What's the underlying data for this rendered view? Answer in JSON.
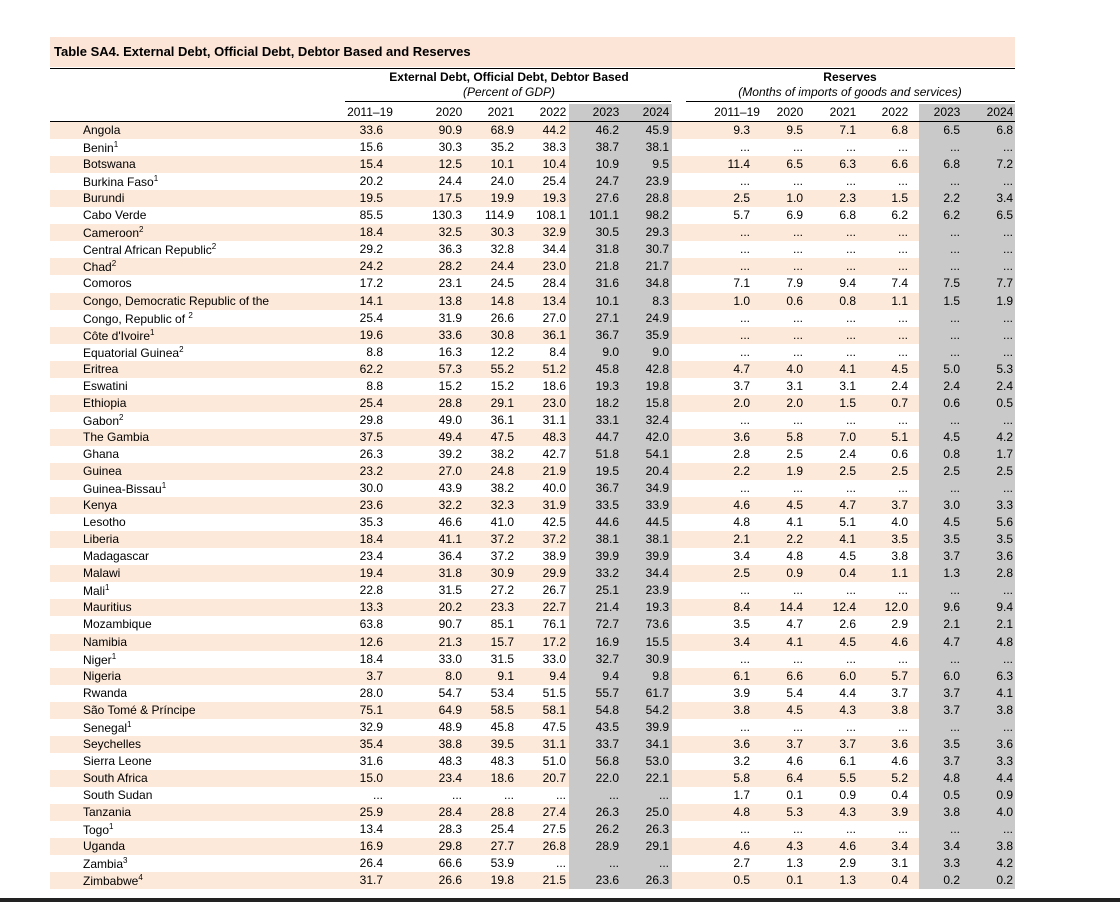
{
  "title": "Table SA4. External Debt, Official Debt, Debtor Based and Reserves",
  "groups": [
    {
      "title": "External Debt, Official Debt, Debtor Based",
      "subtitle": "(Percent of GDP)",
      "years": [
        "2011–19",
        "2020",
        "2021",
        "2022",
        "2023",
        "2024"
      ]
    },
    {
      "title": "Reserves",
      "subtitle": "(Months of imports of goods and services)",
      "years": [
        "2011–19",
        "2020",
        "2021",
        "2022",
        "2023",
        "2024"
      ]
    }
  ],
  "rows": [
    {
      "name": "Angola",
      "debt": [
        "33.6",
        "90.9",
        "68.9",
        "44.2",
        "46.2",
        "45.9"
      ],
      "reserves": [
        "9.3",
        "9.5",
        "7.1",
        "6.8",
        "6.5",
        "6.8"
      ]
    },
    {
      "name": "Benin",
      "note": "1",
      "debt": [
        "15.6",
        "30.3",
        "35.2",
        "38.3",
        "38.7",
        "38.1"
      ],
      "reserves": [
        "...",
        "...",
        "...",
        "...",
        "...",
        "..."
      ]
    },
    {
      "name": "Botswana",
      "debt": [
        "15.4",
        "12.5",
        "10.1",
        "10.4",
        "10.9",
        "9.5"
      ],
      "reserves": [
        "11.4",
        "6.5",
        "6.3",
        "6.6",
        "6.8",
        "7.2"
      ]
    },
    {
      "name": "Burkina Faso",
      "note": "1",
      "debt": [
        "20.2",
        "24.4",
        "24.0",
        "25.4",
        "24.7",
        "23.9"
      ],
      "reserves": [
        "...",
        "...",
        "...",
        "...",
        "...",
        "..."
      ]
    },
    {
      "name": "Burundi",
      "debt": [
        "19.5",
        "17.5",
        "19.9",
        "19.3",
        "27.6",
        "28.8"
      ],
      "reserves": [
        "2.5",
        "1.0",
        "2.3",
        "1.5",
        "2.2",
        "3.4"
      ]
    },
    {
      "name": "Cabo Verde",
      "debt": [
        "85.5",
        "130.3",
        "114.9",
        "108.1",
        "101.1",
        "98.2"
      ],
      "reserves": [
        "5.7",
        "6.9",
        "6.8",
        "6.2",
        "6.2",
        "6.5"
      ]
    },
    {
      "name": "Cameroon",
      "note": "2",
      "debt": [
        "18.4",
        "32.5",
        "30.3",
        "32.9",
        "30.5",
        "29.3"
      ],
      "reserves": [
        "...",
        "...",
        "...",
        "...",
        "...",
        "..."
      ]
    },
    {
      "name": "Central African Republic",
      "note": "2",
      "debt": [
        "29.2",
        "36.3",
        "32.8",
        "34.4",
        "31.8",
        "30.7"
      ],
      "reserves": [
        "...",
        "...",
        "...",
        "...",
        "...",
        "..."
      ]
    },
    {
      "name": "Chad",
      "note": "2",
      "debt": [
        "24.2",
        "28.2",
        "24.4",
        "23.0",
        "21.8",
        "21.7"
      ],
      "reserves": [
        "...",
        "...",
        "...",
        "...",
        "...",
        "..."
      ]
    },
    {
      "name": "Comoros",
      "debt": [
        "17.2",
        "23.1",
        "24.5",
        "28.4",
        "31.6",
        "34.8"
      ],
      "reserves": [
        "7.1",
        "7.9",
        "9.4",
        "7.4",
        "7.5",
        "7.7"
      ]
    },
    {
      "name": "Congo, Democratic Republic of the",
      "debt": [
        "14.1",
        "13.8",
        "14.8",
        "13.4",
        "10.1",
        "8.3"
      ],
      "reserves": [
        "1.0",
        "0.6",
        "0.8",
        "1.1",
        "1.5",
        "1.9"
      ]
    },
    {
      "name": "Congo, Republic of ",
      "note": "2",
      "debt": [
        "25.4",
        "31.9",
        "26.6",
        "27.0",
        "27.1",
        "24.9"
      ],
      "reserves": [
        "...",
        "...",
        "...",
        "...",
        "...",
        "..."
      ]
    },
    {
      "name": "Côte d'Ivoire",
      "note": "1",
      "debt": [
        "19.6",
        "33.6",
        "30.8",
        "36.1",
        "36.7",
        "35.9"
      ],
      "reserves": [
        "...",
        "...",
        "...",
        "...",
        "...",
        "..."
      ]
    },
    {
      "name": "Equatorial Guinea",
      "note": "2",
      "debt": [
        "8.8",
        "16.3",
        "12.2",
        "8.4",
        "9.0",
        "9.0"
      ],
      "reserves": [
        "...",
        "...",
        "...",
        "...",
        "...",
        "..."
      ]
    },
    {
      "name": "Eritrea",
      "debt": [
        "62.2",
        "57.3",
        "55.2",
        "51.2",
        "45.8",
        "42.8"
      ],
      "reserves": [
        "4.7",
        "4.0",
        "4.1",
        "4.5",
        "5.0",
        "5.3"
      ]
    },
    {
      "name": "Eswatini",
      "debt": [
        "8.8",
        "15.2",
        "15.2",
        "18.6",
        "19.3",
        "19.8"
      ],
      "reserves": [
        "3.7",
        "3.1",
        "3.1",
        "2.4",
        "2.4",
        "2.4"
      ]
    },
    {
      "name": "Ethiopia",
      "debt": [
        "25.4",
        "28.8",
        "29.1",
        "23.0",
        "18.2",
        "15.8"
      ],
      "reserves": [
        "2.0",
        "2.0",
        "1.5",
        "0.7",
        "0.6",
        "0.5"
      ]
    },
    {
      "name": "Gabon",
      "note": "2",
      "debt": [
        "29.8",
        "49.0",
        "36.1",
        "31.1",
        "33.1",
        "32.4"
      ],
      "reserves": [
        "...",
        "...",
        "...",
        "...",
        "...",
        "..."
      ]
    },
    {
      "name": "The Gambia",
      "debt": [
        "37.5",
        "49.4",
        "47.5",
        "48.3",
        "44.7",
        "42.0"
      ],
      "reserves": [
        "3.6",
        "5.8",
        "7.0",
        "5.1",
        "4.5",
        "4.2"
      ]
    },
    {
      "name": "Ghana",
      "debt": [
        "26.3",
        "39.2",
        "38.2",
        "42.7",
        "51.8",
        "54.1"
      ],
      "reserves": [
        "2.8",
        "2.5",
        "2.4",
        "0.6",
        "0.8",
        "1.7"
      ]
    },
    {
      "name": "Guinea",
      "debt": [
        "23.2",
        "27.0",
        "24.8",
        "21.9",
        "19.5",
        "20.4"
      ],
      "reserves": [
        "2.2",
        "1.9",
        "2.5",
        "2.5",
        "2.5",
        "2.5"
      ]
    },
    {
      "name": "Guinea-Bissau",
      "note": "1",
      "debt": [
        "30.0",
        "43.9",
        "38.2",
        "40.0",
        "36.7",
        "34.9"
      ],
      "reserves": [
        "...",
        "...",
        "...",
        "...",
        "...",
        "..."
      ]
    },
    {
      "name": "Kenya",
      "debt": [
        "23.6",
        "32.2",
        "32.3",
        "31.9",
        "33.5",
        "33.9"
      ],
      "reserves": [
        "4.6",
        "4.5",
        "4.7",
        "3.7",
        "3.0",
        "3.3"
      ]
    },
    {
      "name": "Lesotho",
      "debt": [
        "35.3",
        "46.6",
        "41.0",
        "42.5",
        "44.6",
        "44.5"
      ],
      "reserves": [
        "4.8",
        "4.1",
        "5.1",
        "4.0",
        "4.5",
        "5.6"
      ]
    },
    {
      "name": "Liberia",
      "debt": [
        "18.4",
        "41.1",
        "37.2",
        "37.2",
        "38.1",
        "38.1"
      ],
      "reserves": [
        "2.1",
        "2.2",
        "4.1",
        "3.5",
        "3.5",
        "3.5"
      ]
    },
    {
      "name": "Madagascar",
      "debt": [
        "23.4",
        "36.4",
        "37.2",
        "38.9",
        "39.9",
        "39.9"
      ],
      "reserves": [
        "3.4",
        "4.8",
        "4.5",
        "3.8",
        "3.7",
        "3.6"
      ]
    },
    {
      "name": "Malawi",
      "debt": [
        "19.4",
        "31.8",
        "30.9",
        "29.9",
        "33.2",
        "34.4"
      ],
      "reserves": [
        "2.5",
        "0.9",
        "0.4",
        "1.1",
        "1.3",
        "2.8"
      ]
    },
    {
      "name": "Mali",
      "note": "1",
      "debt": [
        "22.8",
        "31.5",
        "27.2",
        "26.7",
        "25.1",
        "23.9"
      ],
      "reserves": [
        "...",
        "...",
        "...",
        "...",
        "...",
        "..."
      ]
    },
    {
      "name": "Mauritius",
      "debt": [
        "13.3",
        "20.2",
        "23.3",
        "22.7",
        "21.4",
        "19.3"
      ],
      "reserves": [
        "8.4",
        "14.4",
        "12.4",
        "12.0",
        "9.6",
        "9.4"
      ]
    },
    {
      "name": "Mozambique",
      "debt": [
        "63.8",
        "90.7",
        "85.1",
        "76.1",
        "72.7",
        "73.6"
      ],
      "reserves": [
        "3.5",
        "4.7",
        "2.6",
        "2.9",
        "2.1",
        "2.1"
      ]
    },
    {
      "name": "Namibia",
      "debt": [
        "12.6",
        "21.3",
        "15.7",
        "17.2",
        "16.9",
        "15.5"
      ],
      "reserves": [
        "3.4",
        "4.1",
        "4.5",
        "4.6",
        "4.7",
        "4.8"
      ]
    },
    {
      "name": "Niger",
      "note": "1",
      "debt": [
        "18.4",
        "33.0",
        "31.5",
        "33.0",
        "32.7",
        "30.9"
      ],
      "reserves": [
        "...",
        "...",
        "...",
        "...",
        "...",
        "..."
      ]
    },
    {
      "name": "Nigeria",
      "debt": [
        "3.7",
        "8.0",
        "9.1",
        "9.4",
        "9.4",
        "9.8"
      ],
      "reserves": [
        "6.1",
        "6.6",
        "6.0",
        "5.7",
        "6.0",
        "6.3"
      ]
    },
    {
      "name": "Rwanda",
      "debt": [
        "28.0",
        "54.7",
        "53.4",
        "51.5",
        "55.7",
        "61.7"
      ],
      "reserves": [
        "3.9",
        "5.4",
        "4.4",
        "3.7",
        "3.7",
        "4.1"
      ]
    },
    {
      "name": "São Tomé & Príncipe",
      "debt": [
        "75.1",
        "64.9",
        "58.5",
        "58.1",
        "54.8",
        "54.2"
      ],
      "reserves": [
        "3.8",
        "4.5",
        "4.3",
        "3.8",
        "3.7",
        "3.8"
      ]
    },
    {
      "name": "Senegal",
      "note": "1",
      "debt": [
        "32.9",
        "48.9",
        "45.8",
        "47.5",
        "43.5",
        "39.9"
      ],
      "reserves": [
        "...",
        "...",
        "...",
        "...",
        "...",
        "..."
      ]
    },
    {
      "name": "Seychelles",
      "debt": [
        "35.4",
        "38.8",
        "39.5",
        "31.1",
        "33.7",
        "34.1"
      ],
      "reserves": [
        "3.6",
        "3.7",
        "3.7",
        "3.6",
        "3.5",
        "3.6"
      ]
    },
    {
      "name": "Sierra Leone",
      "debt": [
        "31.6",
        "48.3",
        "48.3",
        "51.0",
        "56.8",
        "53.0"
      ],
      "reserves": [
        "3.2",
        "4.6",
        "6.1",
        "4.6",
        "3.7",
        "3.3"
      ]
    },
    {
      "name": "South Africa",
      "debt": [
        "15.0",
        "23.4",
        "18.6",
        "20.7",
        "22.0",
        "22.1"
      ],
      "reserves": [
        "5.8",
        "6.4",
        "5.5",
        "5.2",
        "4.8",
        "4.4"
      ]
    },
    {
      "name": "South Sudan",
      "debt": [
        "...",
        "...",
        "...",
        "...",
        "...",
        "..."
      ],
      "reserves": [
        "1.7",
        "0.1",
        "0.9",
        "0.4",
        "0.5",
        "0.9"
      ]
    },
    {
      "name": "Tanzania",
      "debt": [
        "25.9",
        "28.4",
        "28.8",
        "27.4",
        "26.3",
        "25.0"
      ],
      "reserves": [
        "4.8",
        "5.3",
        "4.3",
        "3.9",
        "3.8",
        "4.0"
      ]
    },
    {
      "name": "Togo",
      "note": "1",
      "debt": [
        "13.4",
        "28.3",
        "25.4",
        "27.5",
        "26.2",
        "26.3"
      ],
      "reserves": [
        "...",
        "...",
        "...",
        "...",
        "...",
        "..."
      ]
    },
    {
      "name": "Uganda",
      "debt": [
        "16.9",
        "29.8",
        "27.7",
        "26.8",
        "28.9",
        "29.1"
      ],
      "reserves": [
        "4.6",
        "4.3",
        "4.6",
        "3.4",
        "3.4",
        "3.8"
      ]
    },
    {
      "name": "Zambia",
      "note": "3",
      "debt": [
        "26.4",
        "66.6",
        "53.9",
        "...",
        "...",
        "..."
      ],
      "reserves": [
        "2.7",
        "1.3",
        "2.9",
        "3.1",
        "3.3",
        "4.2"
      ]
    },
    {
      "name": "Zimbabwe",
      "note": "4",
      "debt": [
        "31.7",
        "26.6",
        "19.8",
        "21.5",
        "23.6",
        "26.3"
      ],
      "reserves": [
        "0.5",
        "0.1",
        "1.3",
        "0.4",
        "0.2",
        "0.2"
      ]
    }
  ]
}
